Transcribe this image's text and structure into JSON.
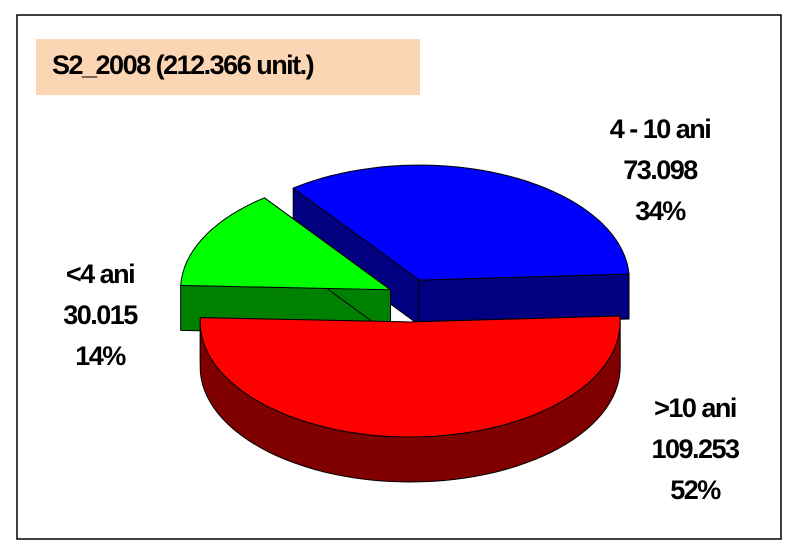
{
  "chart_data": {
    "type": "pie3d",
    "title": "S2_2008 (212.366 unit.)",
    "categories": [
      ">10 ani",
      "<4 ani",
      "4 - 10 ani"
    ],
    "values": [
      109253,
      30015,
      73098
    ],
    "value_labels": [
      "109.253",
      "30.015",
      "73.098"
    ],
    "percent_labels": [
      "52%",
      "14%",
      "34%"
    ],
    "colors": [
      "#ff0000",
      "#00ff00",
      "#0000ff"
    ],
    "side_colors": [
      "#800000",
      "#008000",
      "#000080"
    ]
  }
}
